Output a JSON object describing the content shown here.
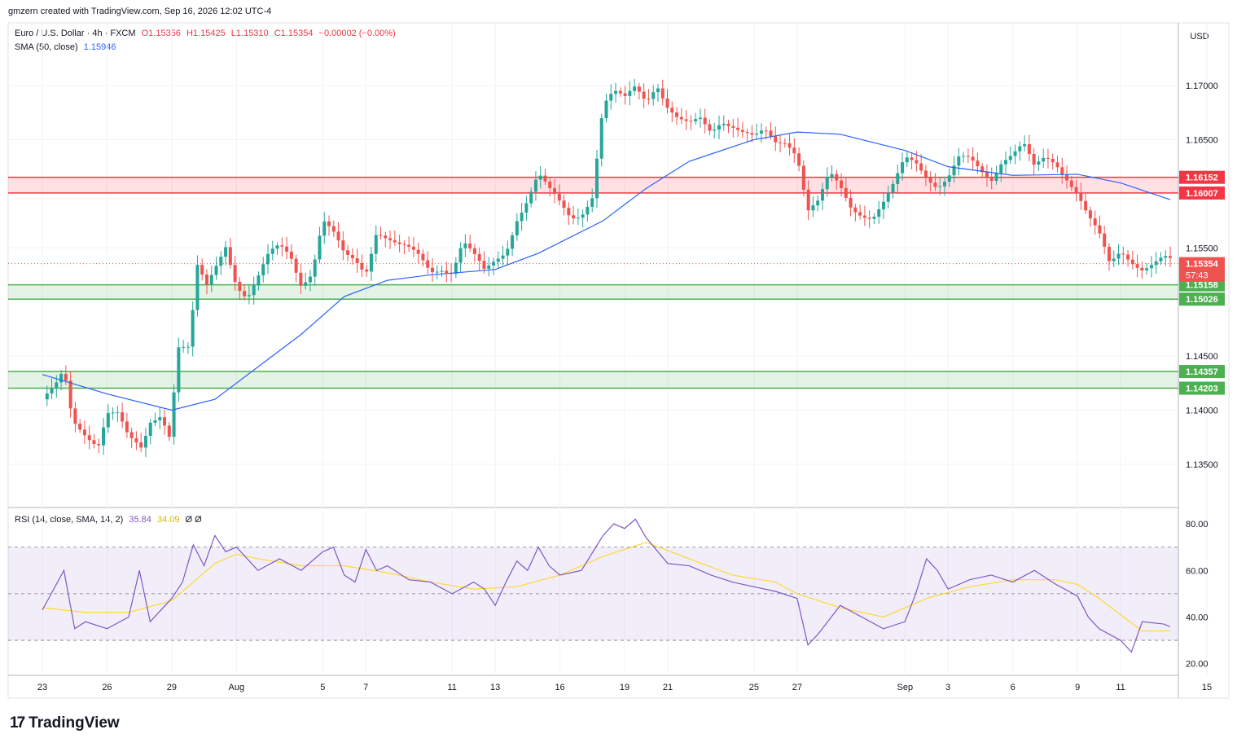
{
  "header": {
    "attribution": "gmzern created with TradingView.com, Sep 16, 2026 12:02 UTC-4"
  },
  "legend": {
    "symbol": "Euro / U.S. Dollar · 4h · FXCM",
    "o": "O1.15356",
    "h": "H1.15425",
    "l": "L1.15310",
    "c": "C1.15354",
    "change": "−0.00002 (−0.00%)",
    "sma_label": "SMA (50, close)",
    "sma_value": "1.15946",
    "rsi_label": "RSI (14, close, SMA, 14, 2)",
    "rsi_value": "35.84",
    "rsi_sma_value": "34.09",
    "rsi_extra": "Ø Ø"
  },
  "currency": "USD",
  "countdown": "57:43",
  "branding": {
    "logo_text": "TradingView",
    "logo_mark": "17"
  },
  "colors": {
    "up": "#26a69a",
    "down": "#ef5350",
    "sma": "#2962ff",
    "rsi": "#7e57c2",
    "rsi_sma": "#fdd835",
    "resistance": "#f23645",
    "support": "#4caf50"
  },
  "chart_data": [
    {
      "type": "candlestick",
      "title": "Euro / U.S. Dollar · 4h · FXCM",
      "ylim": [
        1.131,
        1.1758
      ],
      "y_ticks": [
        "1.13500",
        "1.14000",
        "1.14500",
        "1.15500",
        "1.16500",
        "1.17000"
      ],
      "x_ticks": [
        {
          "label": "23",
          "day": 0
        },
        {
          "label": "26",
          "day": 3
        },
        {
          "label": "29",
          "day": 6
        },
        {
          "label": "Aug",
          "day": 9
        },
        {
          "label": "5",
          "day": 13
        },
        {
          "label": "7",
          "day": 15
        },
        {
          "label": "11",
          "day": 19
        },
        {
          "label": "13",
          "day": 21
        },
        {
          "label": "16",
          "day": 24
        },
        {
          "label": "19",
          "day": 27
        },
        {
          "label": "21",
          "day": 29
        },
        {
          "label": "25",
          "day": 33
        },
        {
          "label": "27",
          "day": 35
        },
        {
          "label": "Sep",
          "day": 40
        },
        {
          "label": "3",
          "day": 42
        },
        {
          "label": "6",
          "day": 45
        },
        {
          "label": "9",
          "day": 48
        },
        {
          "label": "11",
          "day": 50
        },
        {
          "label": "15",
          "day": 54
        }
      ],
      "last_price": {
        "value": 1.15354,
        "label": "1.15354"
      },
      "zones": [
        {
          "kind": "resistance",
          "top": 1.16152,
          "bottom": 1.16007,
          "top_label": "1.16152",
          "bottom_label": "1.16007"
        },
        {
          "kind": "support",
          "top": 1.15158,
          "bottom": 1.15026,
          "top_label": "1.15158",
          "bottom_label": "1.15026"
        },
        {
          "kind": "support",
          "top": 1.14357,
          "bottom": 1.14203,
          "top_label": "1.14357",
          "bottom_label": "1.14203"
        }
      ],
      "close_path": [
        [
          0,
          1.141
        ],
        [
          0.6,
          1.1418
        ],
        [
          1.0,
          1.1432
        ],
        [
          1.4,
          1.1388
        ],
        [
          2,
          1.138
        ],
        [
          2.6,
          1.1372
        ],
        [
          3,
          1.14
        ],
        [
          3.5,
          1.1395
        ],
        [
          4,
          1.137
        ],
        [
          4.6,
          1.1362
        ],
        [
          5,
          1.139
        ],
        [
          5.5,
          1.14
        ],
        [
          5.9,
          1.138
        ],
        [
          6.3,
          1.146
        ],
        [
          6.8,
          1.1455
        ],
        [
          7.2,
          1.153
        ],
        [
          7.6,
          1.151
        ],
        [
          8,
          1.153
        ],
        [
          8.5,
          1.1555
        ],
        [
          9,
          1.152
        ],
        [
          9.5,
          1.1505
        ],
        [
          10,
          1.152
        ],
        [
          10.5,
          1.154
        ],
        [
          11,
          1.155
        ],
        [
          11.5,
          1.1545
        ],
        [
          12,
          1.152
        ],
        [
          12.5,
          1.153
        ],
        [
          13,
          1.1575
        ],
        [
          13.5,
          1.156
        ],
        [
          14,
          1.154
        ],
        [
          14.5,
          1.1538
        ],
        [
          15,
          1.153
        ],
        [
          15.5,
          1.157
        ],
        [
          16,
          1.156
        ],
        [
          16.5,
          1.155
        ],
        [
          17,
          1.1545
        ],
        [
          17.5,
          1.154
        ],
        [
          18,
          1.153
        ],
        [
          18.5,
          1.1535
        ],
        [
          19,
          1.153
        ],
        [
          19.5,
          1.1555
        ],
        [
          20,
          1.154
        ],
        [
          20.5,
          1.1525
        ],
        [
          21,
          1.1538
        ],
        [
          21.5,
          1.155
        ],
        [
          22,
          1.158
        ],
        [
          22.5,
          1.1595
        ],
        [
          23,
          1.1615
        ],
        [
          23.5,
          1.16
        ],
        [
          24,
          1.159
        ],
        [
          24.5,
          1.158
        ],
        [
          25,
          1.1585
        ],
        [
          25.5,
          1.16
        ],
        [
          26,
          1.168
        ],
        [
          26.5,
          1.169
        ],
        [
          27,
          1.1685
        ],
        [
          27.5,
          1.17
        ],
        [
          28,
          1.169
        ],
        [
          28.5,
          1.1705
        ],
        [
          29,
          1.168
        ],
        [
          29.5,
          1.1665
        ],
        [
          30,
          1.166
        ],
        [
          30.5,
          1.1668
        ],
        [
          31,
          1.166
        ],
        [
          31.5,
          1.1672
        ],
        [
          32,
          1.1665
        ],
        [
          32.5,
          1.1655
        ],
        [
          33,
          1.1648
        ],
        [
          33.5,
          1.1655
        ],
        [
          34,
          1.1648
        ],
        [
          34.5,
          1.1652
        ],
        [
          35,
          1.164
        ],
        [
          35.5,
          1.1585
        ],
        [
          36,
          1.159
        ],
        [
          36.5,
          1.1615
        ],
        [
          37,
          1.1605
        ],
        [
          37.5,
          1.159
        ],
        [
          38,
          1.1585
        ],
        [
          38.5,
          1.158
        ],
        [
          39,
          1.159
        ],
        [
          39.5,
          1.1605
        ],
        [
          40,
          1.163
        ],
        [
          40.5,
          1.163
        ],
        [
          41,
          1.162
        ],
        [
          41.5,
          1.161
        ],
        [
          42,
          1.1615
        ],
        [
          42.5,
          1.163
        ],
        [
          43,
          1.1628
        ],
        [
          43.5,
          1.162
        ],
        [
          44,
          1.1615
        ],
        [
          44.5,
          1.1635
        ],
        [
          45,
          1.164
        ],
        [
          45.5,
          1.1645
        ],
        [
          46,
          1.162
        ],
        [
          46.5,
          1.163
        ],
        [
          47,
          1.1628
        ],
        [
          47.5,
          1.1618
        ],
        [
          48,
          1.1605
        ],
        [
          48.5,
          1.158
        ],
        [
          49,
          1.156
        ],
        [
          49.5,
          1.153
        ],
        [
          50,
          1.1545
        ],
        [
          50.5,
          1.154
        ],
        [
          51,
          1.1535
        ],
        [
          51.5,
          1.1538
        ],
        [
          52,
          1.154
        ],
        [
          52.3,
          1.15354
        ]
      ],
      "sma_path": [
        [
          0,
          1.1433
        ],
        [
          3,
          1.1415
        ],
        [
          6,
          1.14
        ],
        [
          8,
          1.141
        ],
        [
          10,
          1.144
        ],
        [
          12,
          1.147
        ],
        [
          14,
          1.1505
        ],
        [
          16,
          1.152
        ],
        [
          18,
          1.1525
        ],
        [
          21,
          1.153
        ],
        [
          23,
          1.1545
        ],
        [
          26,
          1.1575
        ],
        [
          28,
          1.1605
        ],
        [
          30,
          1.163
        ],
        [
          33,
          1.165
        ],
        [
          35,
          1.1657
        ],
        [
          37,
          1.1655
        ],
        [
          40,
          1.164
        ],
        [
          42,
          1.1625
        ],
        [
          45,
          1.1617
        ],
        [
          48,
          1.1618
        ],
        [
          50,
          1.161
        ],
        [
          52.3,
          1.15946
        ]
      ]
    },
    {
      "type": "line",
      "title": "RSI (14, close, SMA, 14, 2)",
      "ylim": [
        15,
        87
      ],
      "y_ticks": [
        "20.00",
        "40.00",
        "60.00",
        "80.00"
      ],
      "bands": {
        "upper": 70,
        "middle": 50,
        "lower": 30
      },
      "rsi_path": [
        [
          0,
          43
        ],
        [
          1,
          60
        ],
        [
          1.5,
          35
        ],
        [
          2,
          38
        ],
        [
          3,
          35
        ],
        [
          4,
          40
        ],
        [
          4.5,
          60
        ],
        [
          5,
          38
        ],
        [
          6,
          48
        ],
        [
          6.5,
          55
        ],
        [
          7,
          71
        ],
        [
          7.5,
          62
        ],
        [
          8,
          75
        ],
        [
          8.5,
          68
        ],
        [
          9,
          70
        ],
        [
          10,
          60
        ],
        [
          11,
          65
        ],
        [
          12,
          60
        ],
        [
          13,
          68
        ],
        [
          13.5,
          70
        ],
        [
          14,
          58
        ],
        [
          14.5,
          55
        ],
        [
          15,
          69
        ],
        [
          15.5,
          60
        ],
        [
          16,
          62
        ],
        [
          17,
          56
        ],
        [
          18,
          55
        ],
        [
          19,
          50
        ],
        [
          20,
          55
        ],
        [
          20.5,
          52
        ],
        [
          21,
          45
        ],
        [
          21.5,
          55
        ],
        [
          22,
          64
        ],
        [
          22.5,
          60
        ],
        [
          23,
          70
        ],
        [
          23.5,
          62
        ],
        [
          24,
          58
        ],
        [
          25,
          60
        ],
        [
          26,
          75
        ],
        [
          26.5,
          80
        ],
        [
          27,
          78
        ],
        [
          27.5,
          82
        ],
        [
          28,
          74
        ],
        [
          29,
          63
        ],
        [
          30,
          62
        ],
        [
          31,
          58
        ],
        [
          32,
          55
        ],
        [
          33,
          53
        ],
        [
          34,
          51
        ],
        [
          35,
          48
        ],
        [
          35.5,
          28
        ],
        [
          36,
          33
        ],
        [
          37,
          45
        ],
        [
          38,
          40
        ],
        [
          39,
          35
        ],
        [
          40,
          38
        ],
        [
          40.5,
          50
        ],
        [
          41,
          65
        ],
        [
          41.5,
          60
        ],
        [
          42,
          52
        ],
        [
          43,
          56
        ],
        [
          44,
          58
        ],
        [
          45,
          55
        ],
        [
          46,
          60
        ],
        [
          47,
          54
        ],
        [
          48,
          49
        ],
        [
          48.5,
          40
        ],
        [
          49,
          35
        ],
        [
          50,
          30
        ],
        [
          50.5,
          25
        ],
        [
          51,
          38
        ],
        [
          52,
          37
        ],
        [
          52.3,
          35.84
        ]
      ],
      "rsi_sma_path": [
        [
          0,
          44
        ],
        [
          2,
          42
        ],
        [
          4,
          42
        ],
        [
          6,
          47
        ],
        [
          7,
          55
        ],
        [
          8,
          63
        ],
        [
          9,
          67
        ],
        [
          10,
          65
        ],
        [
          12,
          62
        ],
        [
          14,
          62
        ],
        [
          16,
          59
        ],
        [
          18,
          55
        ],
        [
          20,
          52
        ],
        [
          22,
          53
        ],
        [
          24,
          58
        ],
        [
          26,
          66
        ],
        [
          28,
          72
        ],
        [
          30,
          65
        ],
        [
          32,
          58
        ],
        [
          34,
          55
        ],
        [
          35,
          50
        ],
        [
          37,
          44
        ],
        [
          39,
          40
        ],
        [
          41,
          48
        ],
        [
          43,
          53
        ],
        [
          45,
          56
        ],
        [
          47,
          56
        ],
        [
          48,
          54
        ],
        [
          49,
          48
        ],
        [
          50,
          41
        ],
        [
          51,
          34
        ],
        [
          52.3,
          34.09
        ]
      ]
    }
  ]
}
